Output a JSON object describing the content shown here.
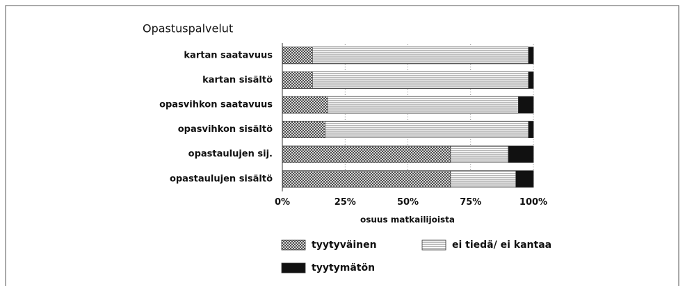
{
  "chart_data": {
    "type": "stacked-barh",
    "title": "Opastuspalvelut",
    "categories": [
      "kartan saatavuus",
      "kartan sisältö",
      "opasvihkon saatavuus",
      "opasvihkon sisältö",
      "opastaulujen sij.",
      "opastaulujen sisältö"
    ],
    "series": [
      {
        "name": "tyytyväinen",
        "pattern": "crosshatch",
        "color": "#333333",
        "values": [
          12,
          12,
          18,
          17,
          67,
          67
        ]
      },
      {
        "name": "ei tiedä/ ei kantaa",
        "pattern": "horizontal",
        "color": "#333333",
        "values": [
          86,
          86,
          76,
          81,
          23,
          26
        ]
      },
      {
        "name": "tyytymätön",
        "pattern": "solid",
        "color": "#111111",
        "values": [
          2,
          2,
          6,
          2,
          10,
          7
        ]
      }
    ],
    "xlabel": "osuus matkailijoista",
    "xlim": [
      0,
      100
    ],
    "xticks": [
      {
        "value": 0,
        "label": "0%"
      },
      {
        "value": 25,
        "label": "25%"
      },
      {
        "value": 50,
        "label": "50%"
      },
      {
        "value": 75,
        "label": "75%"
      },
      {
        "value": 100,
        "label": "100%"
      }
    ],
    "grid": true
  }
}
